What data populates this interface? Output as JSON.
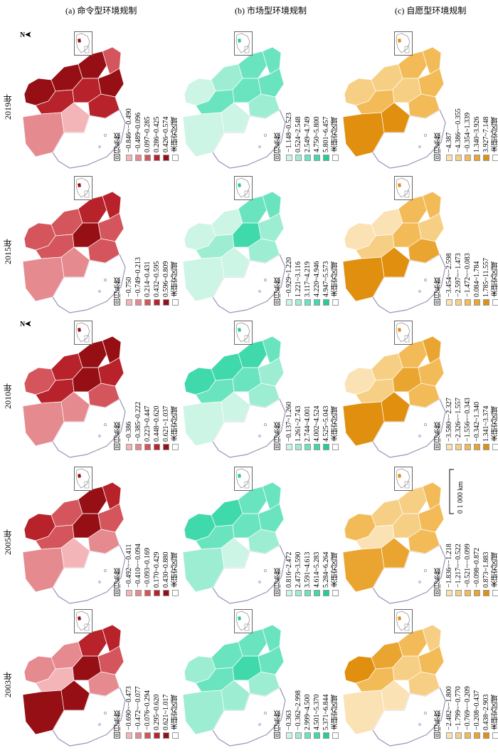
{
  "columns": [
    {
      "title": "(a) 命令型环境规制",
      "colors": [
        "#f4b5b8",
        "#e58a8f",
        "#d4555c",
        "#b8232b",
        "#960f15"
      ]
    },
    {
      "title": "(b) 市场型环境规制",
      "colors": [
        "#cdf5e6",
        "#9dedd3",
        "#6ae4bf",
        "#3fd9ab",
        "#1fcf9a"
      ]
    },
    {
      "title": "(c) 自愿型环境规制",
      "colors": [
        "#fbe2b5",
        "#f7cf84",
        "#f2bb57",
        "#eaa530",
        "#e08f0f"
      ]
    }
  ],
  "legend": {
    "title": "回归系数",
    "unstudied": "未研究区域"
  },
  "scale_bar": {
    "label": "0    1 000 km"
  },
  "north_label": "N",
  "rows": [
    {
      "year": "2019年",
      "panels": [
        {
          "classes": [
            "−0.846~−0.490",
            "−0.489~0.096",
            "0.097~0.285",
            "0.286~0.425",
            "0.426~0.574"
          ],
          "fills": [
            4,
            4,
            3,
            4,
            3,
            2,
            4,
            3,
            1,
            0
          ]
        },
        {
          "classes": [
            "−1.148~0.523",
            "0.524~2.548",
            "2.549~4.749",
            "4.750~5.800",
            "5.801~6.457"
          ],
          "fills": [
            0,
            1,
            2,
            2,
            2,
            2,
            2,
            1,
            0,
            0
          ]
        },
        {
          "classes": [
            "−4.387",
            "−4.386~−0.355",
            "−0.354~1.339",
            "1.340~3.926",
            "3.927~7.148"
          ],
          "fills": [
            1,
            1,
            2,
            2,
            1,
            2,
            2,
            2,
            4,
            4
          ]
        }
      ]
    },
    {
      "year": "2015年",
      "panels": [
        {
          "classes": [
            "−0.750",
            "−0.749~0.213",
            "0.214~0.431",
            "0.432~0.595",
            "0.596~0.809"
          ],
          "fills": [
            2,
            2,
            2,
            3,
            4,
            3,
            2,
            2,
            1,
            1
          ]
        },
        {
          "classes": [
            "−0.929~1.220",
            "1.221~3.116",
            "3.117~4.219",
            "4.220~4.946",
            "4.947~5.573"
          ],
          "fills": [
            0,
            0,
            1,
            2,
            3,
            2,
            1,
            1,
            0,
            0
          ]
        },
        {
          "classes": [
            "−3.454~−2.598",
            "−2.597~−1.473",
            "−1.472~−0.083",
            "0.084~1.784",
            "1.785~11.557"
          ],
          "fills": [
            0,
            0,
            1,
            2,
            2,
            2,
            1,
            3,
            4,
            4
          ]
        }
      ]
    },
    {
      "year": "2010年",
      "panels": [
        {
          "classes": [
            "−0.386",
            "−0.385~0.222",
            "0.223~0.447",
            "0.448~0.620",
            "0.621~1.037"
          ],
          "fills": [
            2,
            3,
            3,
            4,
            4,
            4,
            3,
            2,
            1,
            1
          ]
        },
        {
          "classes": [
            "−0.137~1.260",
            "1.261~2.743",
            "2.744~4.001",
            "4.002~4.524",
            "4.525~5.043"
          ],
          "fills": [
            3,
            3,
            2,
            3,
            2,
            2,
            1,
            1,
            0,
            0
          ]
        },
        {
          "classes": [
            "−3.580~−2.327",
            "−2.326~−1.557",
            "−1.556~−0.343",
            "−0.342~1.340",
            "1.341~3.374"
          ],
          "fills": [
            0,
            1,
            1,
            2,
            3,
            3,
            2,
            2,
            4,
            4
          ]
        }
      ]
    },
    {
      "year": "2005年",
      "panels": [
        {
          "classes": [
            "−0.492~−0.411",
            "−0.410~−0.094",
            "−0.093~0.169",
            "0.170~0.429",
            "0.430~0.880"
          ],
          "fills": [
            3,
            2,
            2,
            4,
            4,
            3,
            2,
            1,
            1,
            0
          ]
        },
        {
          "classes": [
            "0.816~2.472",
            "2.473~3.590",
            "3.591~4.613",
            "4.614~5.283",
            "5.284~6.264"
          ],
          "fills": [
            3,
            3,
            2,
            2,
            2,
            2,
            2,
            1,
            1,
            0
          ]
        },
        {
          "classes": [
            "−1.836~−1.218",
            "−1.217~−0.522",
            "−0.521~−0.099",
            "−0.098~0.872",
            "0.873~1.883"
          ],
          "fills": [
            2,
            1,
            0,
            1,
            1,
            2,
            2,
            2,
            3,
            3
          ]
        }
      ]
    },
    {
      "year": "2003年",
      "panels": [
        {
          "classes": [
            "−0.690~−0.473",
            "−0.472~−0.077",
            "−0.076~0.294",
            "0.295~0.620",
            "0.621~1.017"
          ],
          "fills": [
            1,
            1,
            0,
            3,
            4,
            3,
            2,
            1,
            4,
            4
          ]
        },
        {
          "classes": [
            "−0.363",
            "−0.362~2.998",
            "2.999~4.500",
            "4.501~5.370",
            "5.371~6.844"
          ],
          "fills": [
            1,
            2,
            2,
            2,
            3,
            2,
            2,
            1,
            1,
            1
          ]
        },
        {
          "classes": [
            "−2.482~−1.800",
            "−1.799~−0.770",
            "−0.769~−0.209",
            "−0.208~0.437",
            "0.438~2.903"
          ],
          "fills": [
            4,
            3,
            2,
            2,
            1,
            1,
            2,
            1,
            0,
            0
          ]
        }
      ]
    }
  ]
}
